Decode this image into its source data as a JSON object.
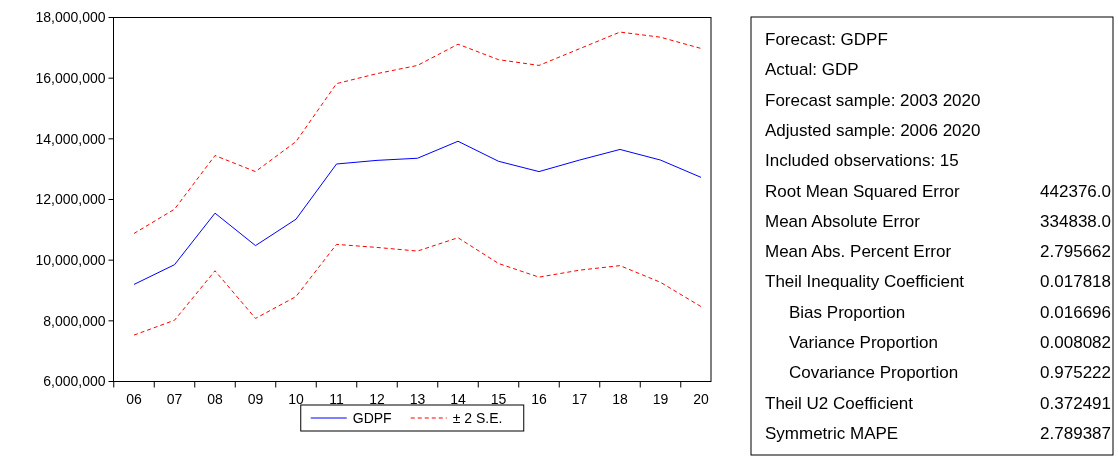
{
  "chart_data": {
    "type": "line",
    "categories": [
      "06",
      "07",
      "08",
      "09",
      "10",
      "11",
      "12",
      "13",
      "14",
      "15",
      "16",
      "17",
      "18",
      "19",
      "20"
    ],
    "series": [
      {
        "name": "GDPF",
        "color": "#0000ff",
        "line_style": "solid",
        "values": [
          9200000,
          9850000,
          11550000,
          10480000,
          11350000,
          13170000,
          13290000,
          13360000,
          13920000,
          13260000,
          12920000,
          13300000,
          13650000,
          13300000,
          12730000
        ]
      },
      {
        "name": "± 2 S.E.",
        "color": "#ff0000",
        "line_style": "dashed",
        "values": [
          10880000,
          11680000,
          13450000,
          12920000,
          13910000,
          15820000,
          16150000,
          16420000,
          17120000,
          16610000,
          16420000,
          16970000,
          17520000,
          17350000,
          16980000
        ]
      },
      {
        "color": "#ff0000",
        "line_style": "dashed",
        "values": [
          7530000,
          8020000,
          9650000,
          8080000,
          8800000,
          10520000,
          10420000,
          10300000,
          10740000,
          9890000,
          9440000,
          9670000,
          9820000,
          9270000,
          8470000
        ]
      }
    ],
    "ylim": [
      6000000,
      18000000
    ],
    "yticks": [
      {
        "value": 6000000,
        "label": "6,000,000"
      },
      {
        "value": 8000000,
        "label": "8,000,000"
      },
      {
        "value": 10000000,
        "label": "10,000,000"
      },
      {
        "value": 12000000,
        "label": "12,000,000"
      },
      {
        "value": 14000000,
        "label": "14,000,000"
      },
      {
        "value": 16000000,
        "label": "16,000,000"
      },
      {
        "value": 18000000,
        "label": "18,000,000"
      }
    ],
    "grid": false,
    "legend": "bottom",
    "annotations": [
      "Forecast: GDPF",
      "Actual: GDP",
      "Forecast sample: 2003 2020",
      "Adjusted sample: 2006 2020",
      "Included observations: 15",
      "Root Mean Squared Error\t442376.0",
      "Mean Absolute Error\t334838.0",
      "Mean Abs. Percent Error\t2.795662",
      "Theil Inequality Coefficient\t0.017818",
      "   Bias Proportion\t0.016696",
      "   Variance Proportion\t0.008082",
      "   Covariance Proportion\t0.975222",
      "Theil U2 Coefficient\t0.372491",
      "Symmetric MAPE\t2.789387"
    ]
  }
}
